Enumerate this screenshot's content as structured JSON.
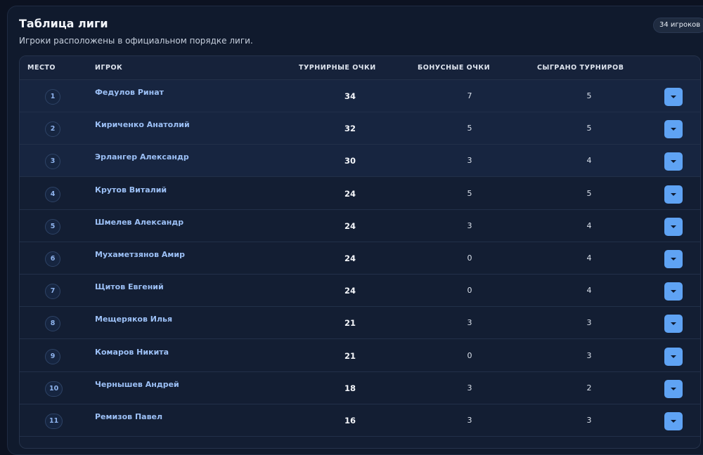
{
  "header": {
    "title": "Таблица лиги",
    "subtitle": "Игроки расположены в официальном порядке лиги.",
    "count_badge": "34 игроков"
  },
  "columns": {
    "rank": "МЕСТО",
    "player": "ИГРОК",
    "tournament_points": "ТУРНИРНЫЕ ОЧКИ",
    "bonus_points": "БОНУСНЫЕ ОЧКИ",
    "played": "СЫГРАНО ТУРНИРОВ"
  },
  "rows": [
    {
      "rank": "1",
      "name": "Федулов Ринат",
      "points": "34",
      "bonus": "7",
      "played": "5"
    },
    {
      "rank": "2",
      "name": "Кириченко Анатолий",
      "points": "32",
      "bonus": "5",
      "played": "5"
    },
    {
      "rank": "3",
      "name": "Эрлангер Александр",
      "points": "30",
      "bonus": "3",
      "played": "4"
    },
    {
      "rank": "4",
      "name": "Крутов Виталий",
      "points": "24",
      "bonus": "5",
      "played": "5"
    },
    {
      "rank": "5",
      "name": "Шмелев Александр",
      "points": "24",
      "bonus": "3",
      "played": "4"
    },
    {
      "rank": "6",
      "name": "Мухаметзянов Амир",
      "points": "24",
      "bonus": "0",
      "played": "4"
    },
    {
      "rank": "7",
      "name": "Щитов Евгений",
      "points": "24",
      "bonus": "0",
      "played": "4"
    },
    {
      "rank": "8",
      "name": "Мещеряков Илья",
      "points": "21",
      "bonus": "3",
      "played": "3"
    },
    {
      "rank": "9",
      "name": "Комаров Никита",
      "points": "21",
      "bonus": "0",
      "played": "3"
    },
    {
      "rank": "10",
      "name": "Чернышев Андрей",
      "points": "18",
      "bonus": "3",
      "played": "2"
    },
    {
      "rank": "11",
      "name": "Ремизов Павел",
      "points": "16",
      "bonus": "3",
      "played": "3"
    }
  ],
  "icons": {
    "expand": "chevron-down-icon"
  },
  "colors": {
    "background": "#0c1221",
    "panel": "#101a2d",
    "accent": "#5fa3f4",
    "player_name": "#9cc0f6",
    "rank_text": "#8fb4ee"
  }
}
